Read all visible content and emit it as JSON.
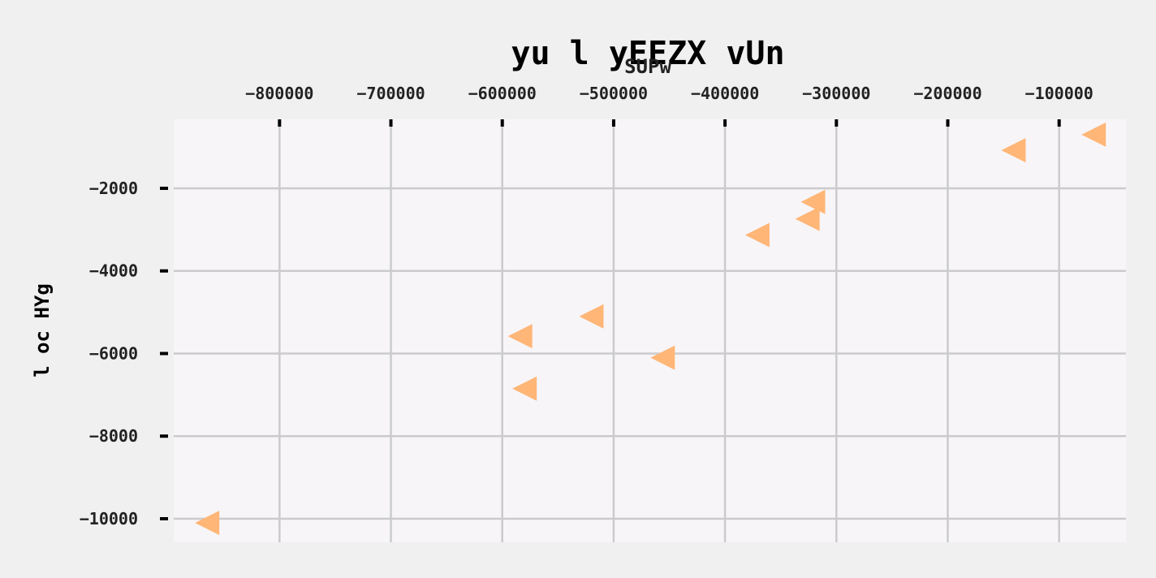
{
  "chart_data": {
    "type": "scatter",
    "title": "yu  l yEEZX vUn",
    "xlabel": "SUPw",
    "ylabel": "l oc HYg",
    "xlim": [
      -895000,
      -40000
    ],
    "ylim": [
      -10570,
      -330
    ],
    "x_ticks": [
      -800000,
      -700000,
      -600000,
      -500000,
      -400000,
      -300000,
      -200000,
      -100000
    ],
    "x_tick_labels": [
      "−800000",
      "−700000",
      "−600000",
      "−500000",
      "−400000",
      "−300000",
      "−200000",
      "−100000"
    ],
    "y_ticks": [
      -2000,
      -4000,
      -6000,
      -8000,
      -10000
    ],
    "y_tick_labels": [
      "−2000",
      "−4000",
      "−6000",
      "−8000",
      "−10000"
    ],
    "x_axis_position": "top",
    "grid": true,
    "marker": "triangle-left",
    "colors": {
      "marker": "#ffb677",
      "plot_background": "#f7f5f8",
      "figure_background": "#f0f0f0",
      "grid": "#cbcbcb"
    },
    "series": [
      {
        "points": [
          {
            "x": -865000,
            "y": -10100
          },
          {
            "x": -580000,
            "y": -6850
          },
          {
            "x": -584000,
            "y": -5580
          },
          {
            "x": -520000,
            "y": -5100
          },
          {
            "x": -456000,
            "y": -6100
          },
          {
            "x": -371000,
            "y": -3130
          },
          {
            "x": -326000,
            "y": -2740
          },
          {
            "x": -321000,
            "y": -2330
          },
          {
            "x": -141000,
            "y": -1080
          },
          {
            "x": -69000,
            "y": -700
          }
        ]
      }
    ]
  }
}
